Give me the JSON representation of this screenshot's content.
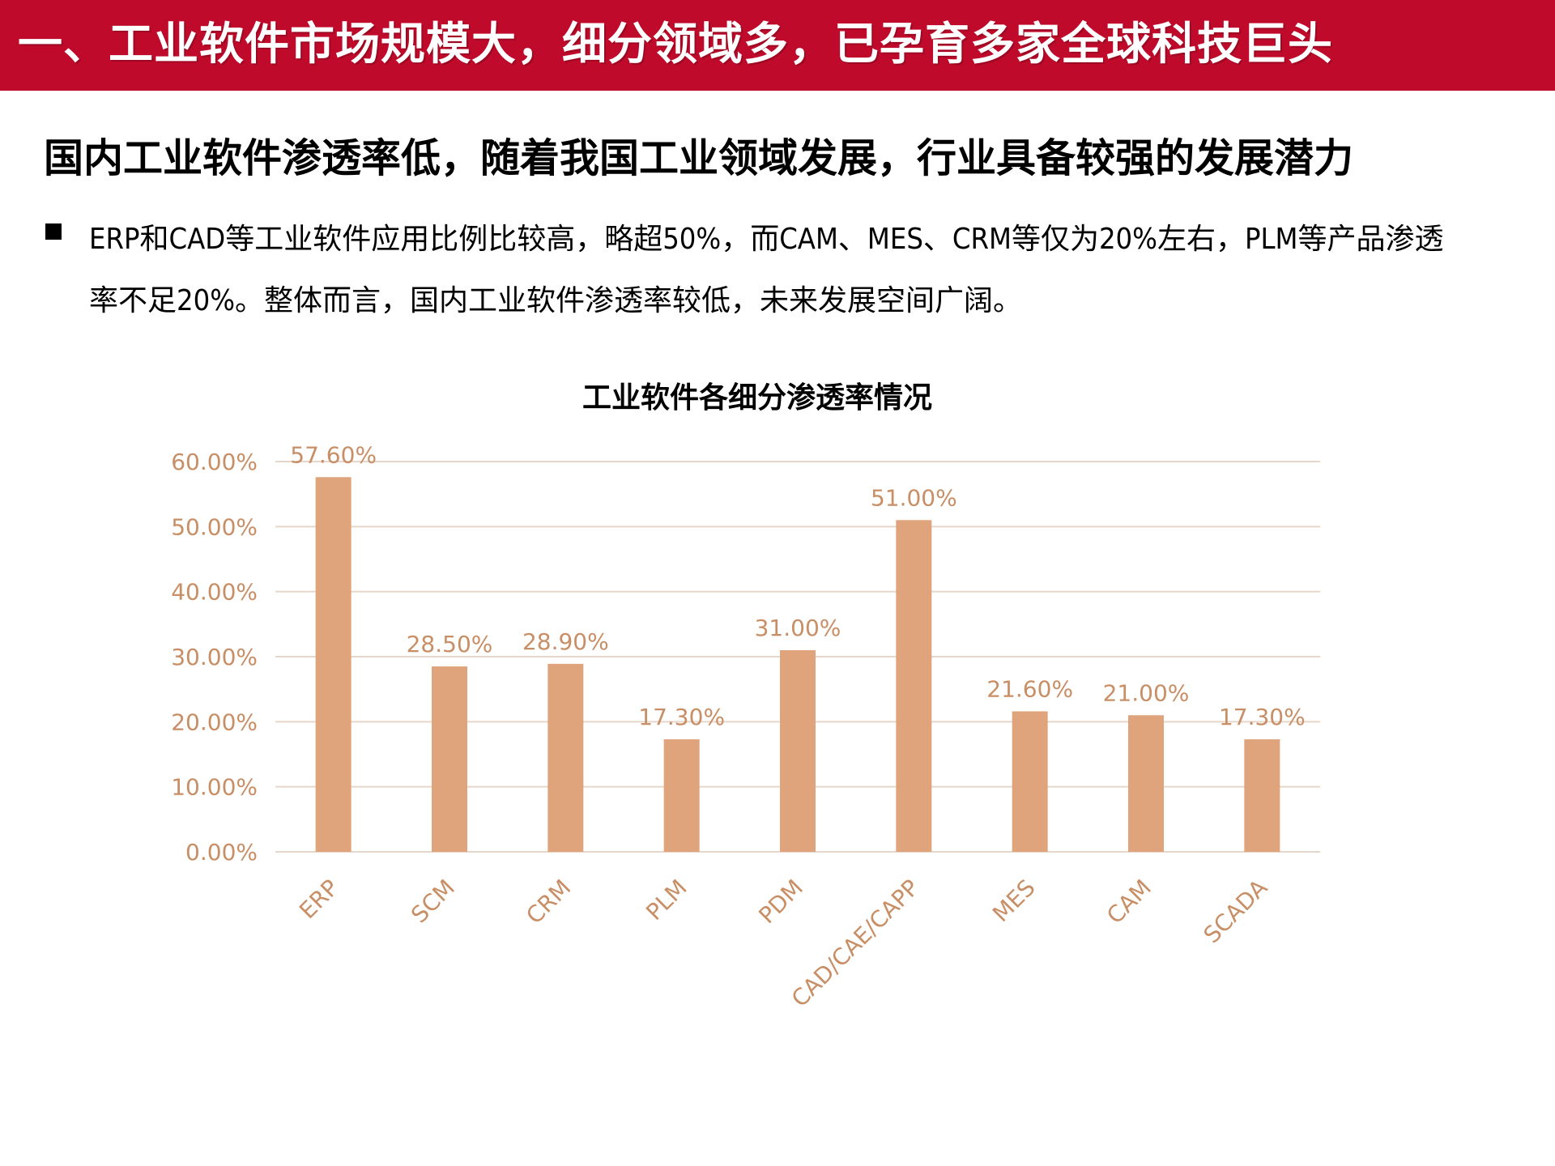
{
  "header": {
    "title": "一、工业软件市场规模大，细分领域多，已孕育多家全球科技巨头"
  },
  "subheading": "国内工业软件渗透率低，随着我国工业领域发展，行业具备较强的发展潜力",
  "bullet": {
    "text": "ERP和CAD等工业软件应用比例比较高，略超50%，而CAM、MES、CRM等仅为20%左右，PLM等产品渗透率不足20%。整体而言，国内工业软件渗透率较低，未来发展空间广阔。"
  },
  "chart_data": {
    "type": "bar",
    "title": "工业软件各细分渗透率情况",
    "xlabel": "",
    "ylabel": "",
    "categories": [
      "ERP",
      "SCM",
      "CRM",
      "PLM",
      "PDM",
      "CAD/CAE/CAPP",
      "MES",
      "CAM",
      "SCADA"
    ],
    "values": [
      57.6,
      28.5,
      28.9,
      17.3,
      31.0,
      51.0,
      21.6,
      21.0,
      17.3
    ],
    "data_labels": [
      "57.60%",
      "28.50%",
      "28.90%",
      "17.30%",
      "31.00%",
      "51.00%",
      "21.60%",
      "21.00%",
      "17.30%"
    ],
    "ylim": [
      0,
      60
    ],
    "yticks": [
      0,
      10,
      20,
      30,
      40,
      50,
      60
    ],
    "ytick_labels": [
      "0.00%",
      "10.00%",
      "20.00%",
      "30.00%",
      "40.00%",
      "50.00%",
      "60.00%"
    ],
    "grid": true,
    "legend": "none",
    "colors": {
      "bar": "#dfa47c",
      "text": "#c88e65",
      "grid": "#e7d6ca",
      "title": "#000000"
    }
  },
  "theme": {
    "banner_bg": "#c00a2b"
  }
}
